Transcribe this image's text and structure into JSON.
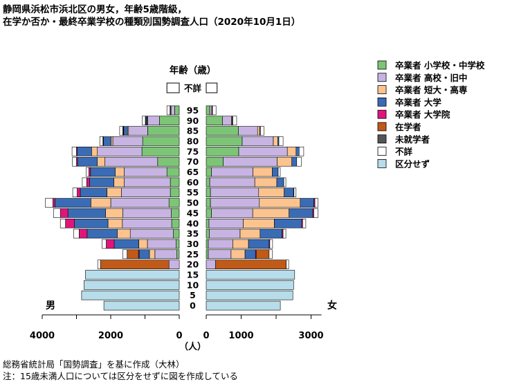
{
  "title": {
    "line1": "静岡県浜松市浜北区の男女，年齢5歳階級，",
    "line2": "在学か否か・最終卒業学校の種類別国勢調査人口（2020年10月1日）"
  },
  "footer": {
    "source": "総務省統計局「国勢調査」を基に作成（大林）",
    "note": "注：15歳未満人口については区分をせずに図を作成している"
  },
  "chart_data": {
    "type": "bar",
    "subtype": "population-pyramid",
    "age_axis_title": "年齢（歳）",
    "age_labels": [
      "0",
      "5",
      "10",
      "15",
      "20",
      "25",
      "30",
      "35",
      "40",
      "45",
      "50",
      "55",
      "60",
      "65",
      "70",
      "75",
      "80",
      "85",
      "90",
      "95"
    ],
    "unknown_age_label": "不詳",
    "male_label": "男",
    "female_label": "女",
    "x_unit_label": "（人）",
    "male_ticks": [
      4000,
      2000,
      0
    ],
    "female_ticks": [
      0,
      1000,
      3000
    ],
    "male_xlim": [
      4000,
      0
    ],
    "female_xlim": [
      0,
      3300
    ],
    "categories": [
      "卒業者 小学校・中学校",
      "卒業者 高校・旧中",
      "卒業者 短大・高専",
      "卒業者 大学",
      "卒業者 大学院",
      "在学者",
      "未就学者",
      "不詳",
      "区分せず"
    ],
    "colors": [
      "#7cc576",
      "#c7b4e2",
      "#fcc38f",
      "#3a6bb5",
      "#e0157c",
      "#c05a18",
      "#555555",
      "#ffffff",
      "#b6dde9"
    ],
    "legend_position": "right",
    "male": [
      [
        0,
        0,
        0,
        0,
        0,
        0,
        0,
        0,
        2200
      ],
      [
        0,
        0,
        0,
        0,
        0,
        0,
        0,
        0,
        2850
      ],
      [
        0,
        0,
        0,
        0,
        0,
        0,
        0,
        0,
        2780
      ],
      [
        0,
        0,
        0,
        0,
        0,
        0,
        0,
        0,
        2740
      ],
      [
        0,
        300,
        0,
        0,
        0,
        2000,
        0,
        80,
        0
      ],
      [
        70,
        640,
        160,
        300,
        20,
        330,
        0,
        130,
        0
      ],
      [
        90,
        840,
        250,
        720,
        230,
        0,
        0,
        120,
        0
      ],
      [
        170,
        1260,
        380,
        880,
        230,
        0,
        0,
        160,
        0
      ],
      [
        220,
        1440,
        420,
        980,
        260,
        0,
        0,
        150,
        0
      ],
      [
        230,
        1420,
        500,
        1100,
        220,
        0,
        0,
        200,
        0
      ],
      [
        300,
        1700,
        580,
        1050,
        60,
        0,
        0,
        220,
        0
      ],
      [
        260,
        1430,
        420,
        780,
        90,
        0,
        0,
        130,
        0
      ],
      [
        260,
        1350,
        300,
        710,
        80,
        0,
        0,
        130,
        0
      ],
      [
        360,
        1250,
        260,
        720,
        50,
        0,
        0,
        80,
        0
      ],
      [
        630,
        1540,
        220,
        580,
        30,
        0,
        0,
        120,
        0
      ],
      [
        1090,
        1300,
        170,
        420,
        20,
        0,
        0,
        130,
        0
      ],
      [
        1070,
        870,
        50,
        220,
        10,
        0,
        10,
        90,
        0
      ],
      [
        920,
        560,
        30,
        110,
        10,
        0,
        20,
        90,
        0
      ],
      [
        580,
        340,
        20,
        30,
        0,
        0,
        20,
        90,
        0
      ],
      [
        130,
        110,
        10,
        0,
        0,
        0,
        20,
        90,
        0
      ]
    ],
    "female": [
      [
        0,
        0,
        0,
        0,
        0,
        0,
        0,
        0,
        2120
      ],
      [
        0,
        0,
        0,
        0,
        0,
        0,
        0,
        0,
        2480
      ],
      [
        0,
        0,
        0,
        0,
        0,
        0,
        0,
        0,
        2500
      ],
      [
        0,
        0,
        0,
        0,
        0,
        0,
        0,
        0,
        2530
      ],
      [
        0,
        270,
        0,
        0,
        0,
        2020,
        0,
        70,
        0
      ],
      [
        60,
        650,
        400,
        300,
        20,
        370,
        0,
        90,
        0
      ],
      [
        60,
        700,
        450,
        590,
        20,
        0,
        0,
        80,
        0
      ],
      [
        90,
        880,
        570,
        630,
        30,
        0,
        0,
        80,
        0
      ],
      [
        80,
        980,
        890,
        780,
        30,
        0,
        0,
        90,
        0
      ],
      [
        150,
        1180,
        1040,
        680,
        30,
        0,
        0,
        120,
        0
      ],
      [
        120,
        1400,
        1170,
        390,
        30,
        0,
        0,
        90,
        0
      ],
      [
        120,
        1380,
        730,
        270,
        10,
        0,
        0,
        60,
        0
      ],
      [
        100,
        1290,
        630,
        200,
        0,
        0,
        0,
        60,
        0
      ],
      [
        150,
        1190,
        550,
        170,
        0,
        0,
        0,
        60,
        0
      ],
      [
        490,
        1540,
        420,
        140,
        0,
        0,
        0,
        130,
        0
      ],
      [
        930,
        1390,
        250,
        90,
        0,
        0,
        0,
        130,
        0
      ],
      [
        1030,
        890,
        130,
        30,
        0,
        0,
        0,
        120,
        0
      ],
      [
        920,
        550,
        60,
        0,
        0,
        0,
        20,
        100,
        0
      ],
      [
        470,
        250,
        20,
        0,
        0,
        0,
        20,
        110,
        0
      ],
      [
        100,
        60,
        0,
        0,
        0,
        0,
        20,
        100,
        0
      ]
    ],
    "unknown_age": {
      "male": 360,
      "female": 310
    }
  }
}
